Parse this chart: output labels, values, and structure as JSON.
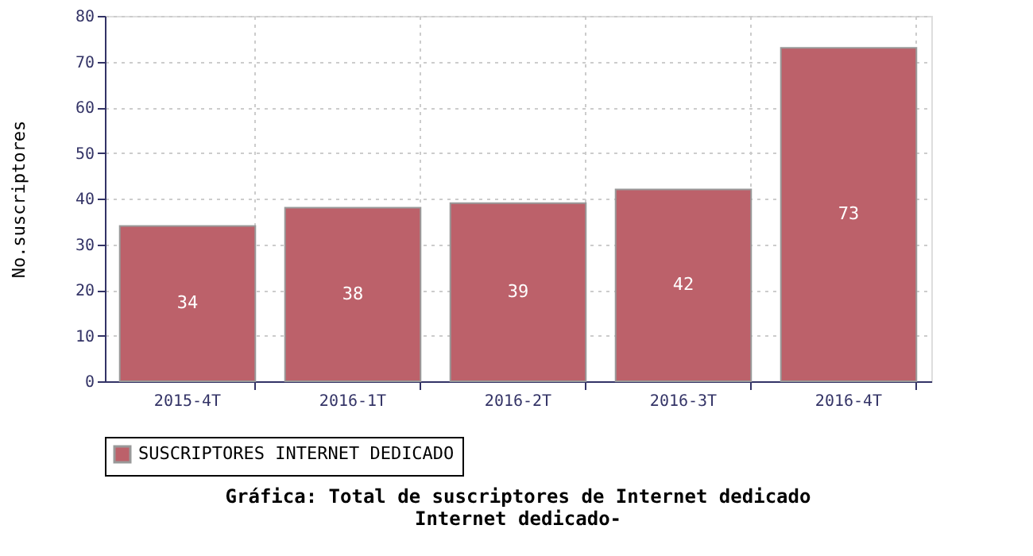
{
  "chart_data": {
    "type": "bar",
    "title": [
      "Gráfica: Total de suscriptores de Internet dedicado",
      "Internet dedicado-"
    ],
    "ylabel": "No.suscriptores",
    "categories": [
      "2015-4T",
      "2016-1T",
      "2016-2T",
      "2016-3T",
      "2016-4T"
    ],
    "series": [
      {
        "name": "SUSCRIPTORES INTERNET DEDICADO",
        "color": "#bc616a",
        "values": [
          34,
          38,
          39,
          42,
          73
        ]
      }
    ],
    "ylim": [
      0,
      80
    ],
    "yticks": [
      0,
      10,
      20,
      30,
      40,
      50,
      60,
      70,
      80
    ],
    "grid": true,
    "legend": "bottom",
    "data_labels": true
  }
}
